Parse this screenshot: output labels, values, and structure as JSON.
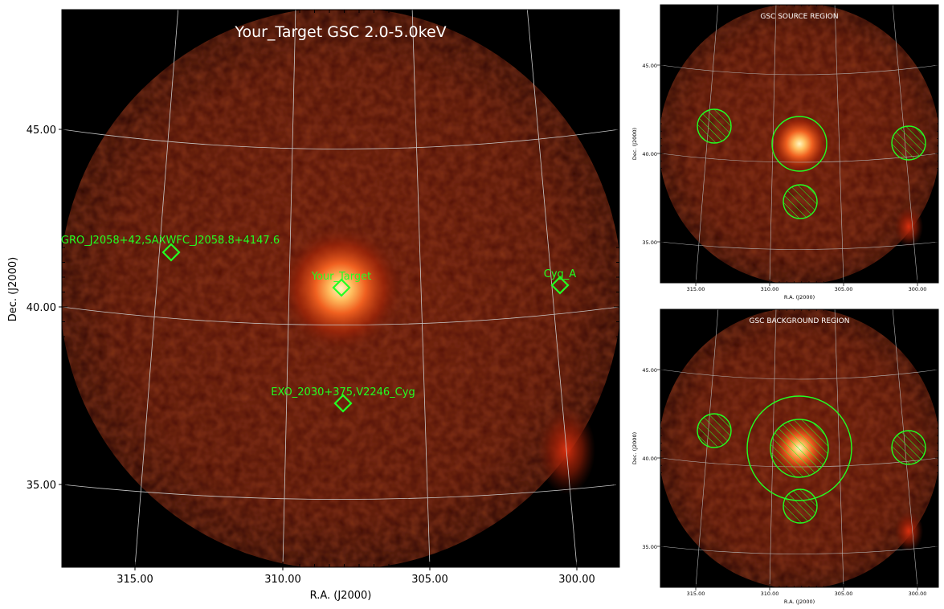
{
  "colors": {
    "background": "#000000",
    "image_tint": "#5a1205",
    "source_core": "#fff2b0",
    "marker": "#22ff22",
    "grid": "#c8c8c8",
    "title": "#ffffff"
  },
  "main": {
    "title": "Your_Target GSC 2.0-5.0keV",
    "xlabel": "R.A. (J2000)",
    "ylabel": "Dec. (J2000)",
    "xticks": [
      "315.00",
      "310.00",
      "305.00",
      "300.00"
    ],
    "yticks": [
      "45.00",
      "40.00",
      "35.00"
    ],
    "sources": [
      {
        "name": "GRO_J2058+42,SAXWFC_J2058.8+4147.6",
        "ra": 313.8,
        "dec": 41.5
      },
      {
        "name": "Your_Target",
        "ra": 308.1,
        "dec": 40.6
      },
      {
        "name": "Cyg_A",
        "ra": 299.9,
        "dec": 40.7
      },
      {
        "name": "EXO_2030+375,V2246_Cyg",
        "ra": 308.1,
        "dec": 37.3
      }
    ]
  },
  "source_panel": {
    "title": "GSC SOURCE REGION",
    "xlabel": "R.A. (J2000)",
    "ylabel": "Dec. (J2000)",
    "xticks": [
      "315.00",
      "310.00",
      "305.00",
      "300.00"
    ],
    "yticks": [
      "45.00",
      "40.00",
      "35.00"
    ]
  },
  "background_panel": {
    "title": "GSC BACKGROUND REGION",
    "xlabel": "R.A. (J2000)",
    "ylabel": "Dec. (J2000)",
    "xticks": [
      "315.00",
      "310.00",
      "305.00",
      "300.00"
    ],
    "yticks": [
      "45.00",
      "40.00",
      "35.00"
    ]
  }
}
